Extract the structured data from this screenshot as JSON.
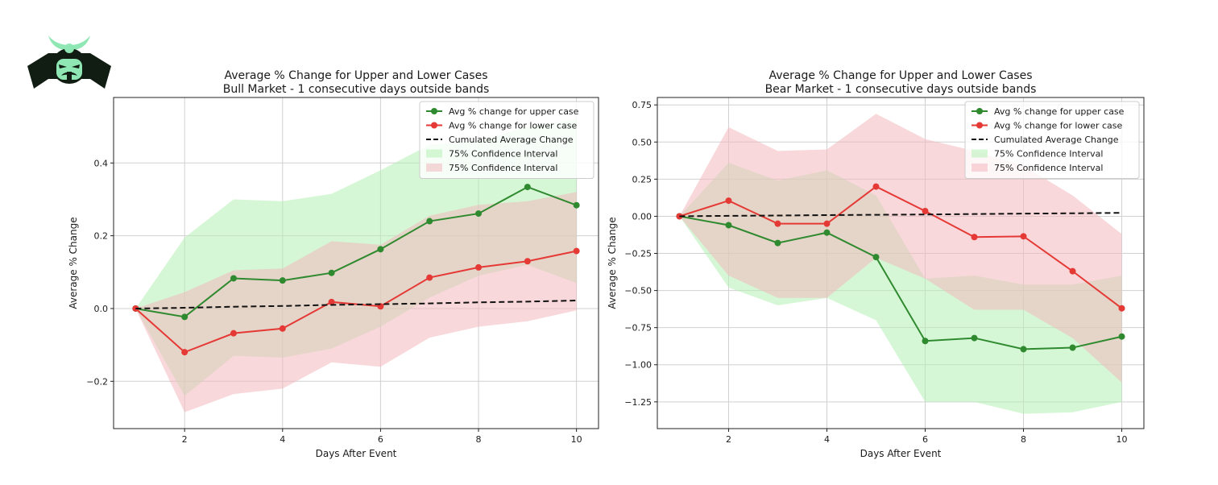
{
  "logo": {
    "icon": "samurai-helmet-logo-icon",
    "colors": {
      "dark": "#111d12",
      "accent": "#8fe7b3"
    }
  },
  "colors": {
    "upper": "#2f8a2f",
    "lower": "#e53935",
    "cumulative": "#111111",
    "upper_band": "#b4f0b4",
    "lower_band": "#f2b8be",
    "grid": "#d0d0d0"
  },
  "chart_data": [
    {
      "type": "line",
      "title": "Average % Change for Upper and Lower Cases",
      "subtitle": "Bull Market - 1 consecutive days outside bands",
      "xlabel": "Days After Event",
      "ylabel": "Average % Change",
      "xlim": [
        0.55,
        10.45
      ],
      "ylim": [
        -0.33,
        0.58
      ],
      "xticks": [
        2,
        4,
        6,
        8,
        10
      ],
      "yticks": [
        -0.2,
        0.0,
        0.2,
        0.4
      ],
      "ytick_labels": [
        "−0.2",
        "0.0",
        "0.2",
        "0.4"
      ],
      "grid": true,
      "legend_position": "top-right",
      "x": [
        1,
        2,
        3,
        4,
        5,
        6,
        7,
        8,
        9,
        10
      ],
      "series": [
        {
          "name": "Avg % change for upper case",
          "style": "line-marker",
          "color": "upper",
          "values": [
            0.0,
            -0.023,
            0.083,
            0.077,
            0.098,
            0.163,
            0.24,
            0.261,
            0.334,
            0.284
          ]
        },
        {
          "name": "Avg % change for lower case",
          "style": "line-marker",
          "color": "lower",
          "values": [
            0.0,
            -0.12,
            -0.068,
            -0.055,
            0.018,
            0.006,
            0.085,
            0.113,
            0.13,
            0.158
          ]
        },
        {
          "name": "Cumulated Average Change",
          "style": "dashed",
          "color": "cumulative",
          "values": [
            0.0,
            0.002,
            0.005,
            0.007,
            0.01,
            0.012,
            0.014,
            0.017,
            0.019,
            0.022
          ]
        }
      ],
      "bands": [
        {
          "name": "75% Confidence Interval",
          "color": "upper_band",
          "lower": [
            0.0,
            -0.24,
            -0.13,
            -0.135,
            -0.11,
            -0.05,
            0.03,
            0.09,
            0.12,
            0.07
          ],
          "upper": [
            0.0,
            0.195,
            0.3,
            0.295,
            0.315,
            0.38,
            0.45,
            0.46,
            0.5,
            0.52
          ]
        },
        {
          "name": "75% Confidence Interval",
          "color": "lower_band",
          "lower": [
            0.0,
            -0.285,
            -0.235,
            -0.22,
            -0.148,
            -0.16,
            -0.08,
            -0.05,
            -0.035,
            -0.005
          ],
          "upper": [
            0.0,
            0.045,
            0.105,
            0.11,
            0.185,
            0.175,
            0.255,
            0.285,
            0.295,
            0.32
          ]
        }
      ]
    },
    {
      "type": "line",
      "title": "Average % Change for Upper and Lower Cases",
      "subtitle": "Bear Market - 1 consecutive days outside bands",
      "xlabel": "Days After Event",
      "ylabel": "Average % Change",
      "xlim": [
        0.55,
        10.45
      ],
      "ylim": [
        -1.43,
        0.8
      ],
      "xticks": [
        2,
        4,
        6,
        8,
        10
      ],
      "yticks": [
        -1.25,
        -1.0,
        -0.75,
        -0.5,
        -0.25,
        0.0,
        0.25,
        0.5,
        0.75
      ],
      "ytick_labels": [
        "−1.25",
        "−1.00",
        "−0.75",
        "−0.50",
        "−0.25",
        "0.00",
        "0.25",
        "0.50",
        "0.75"
      ],
      "grid": true,
      "legend_position": "top-right",
      "x": [
        1,
        2,
        3,
        4,
        5,
        6,
        7,
        8,
        9,
        10
      ],
      "series": [
        {
          "name": "Avg % change for upper case",
          "style": "line-marker",
          "color": "upper",
          "values": [
            0.0,
            -0.06,
            -0.18,
            -0.11,
            -0.275,
            -0.84,
            -0.82,
            -0.895,
            -0.885,
            -0.81
          ]
        },
        {
          "name": "Avg % change for lower case",
          "style": "line-marker",
          "color": "lower",
          "values": [
            0.0,
            0.105,
            -0.05,
            -0.05,
            0.2,
            0.035,
            -0.14,
            -0.135,
            -0.37,
            -0.62
          ]
        },
        {
          "name": "Cumulated Average Change",
          "style": "dashed",
          "color": "cumulative",
          "values": [
            0.0,
            0.003,
            0.005,
            0.008,
            0.01,
            0.012,
            0.015,
            0.018,
            0.02,
            0.023
          ]
        }
      ],
      "bands": [
        {
          "name": "75% Confidence Interval",
          "color": "upper_band",
          "lower": [
            0.0,
            -0.48,
            -0.6,
            -0.55,
            -0.7,
            -1.25,
            -1.25,
            -1.33,
            -1.32,
            -1.25
          ],
          "upper": [
            0.0,
            0.36,
            0.24,
            0.31,
            0.14,
            -0.42,
            -0.4,
            -0.46,
            -0.46,
            -0.4
          ]
        },
        {
          "name": "75% Confidence Interval",
          "color": "lower_band",
          "lower": [
            0.0,
            -0.4,
            -0.55,
            -0.55,
            -0.28,
            -0.42,
            -0.63,
            -0.63,
            -0.82,
            -1.12
          ],
          "upper": [
            0.0,
            0.6,
            0.44,
            0.45,
            0.69,
            0.52,
            0.44,
            0.34,
            0.14,
            -0.12
          ]
        }
      ]
    }
  ]
}
